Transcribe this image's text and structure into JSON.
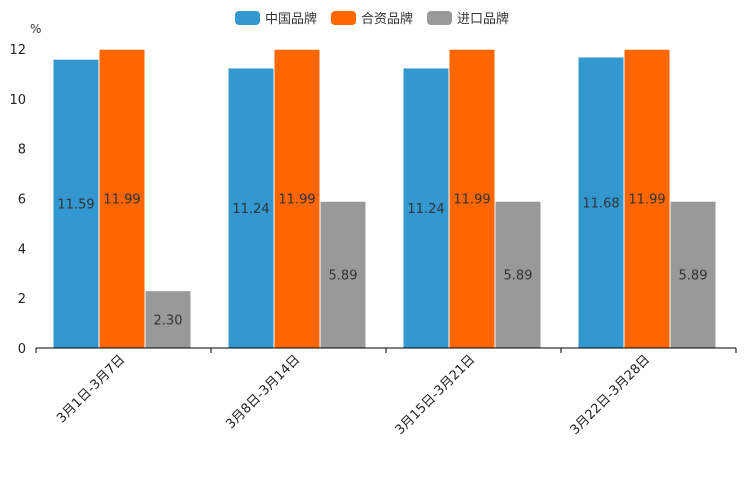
{
  "chart_data": {
    "type": "bar",
    "ylabel": "%",
    "ylim": [
      0,
      12
    ],
    "yticks": [
      "0",
      "2",
      "4",
      "6",
      "8",
      "10",
      "12"
    ],
    "categories": [
      "3月1日-3月7日",
      "3月8日-3月14日",
      "3月15日-3月21日",
      "3月22日-3月28日"
    ],
    "series": [
      {
        "name": "中国品牌",
        "color": "#3398d0",
        "values": [
          11.59,
          11.24,
          11.24,
          11.68
        ],
        "labels": [
          "11.59",
          "11.24",
          "11.24",
          "11.68"
        ]
      },
      {
        "name": "合资品牌",
        "color": "#ff6600",
        "values": [
          11.99,
          11.99,
          11.99,
          11.99
        ],
        "labels": [
          "11.99",
          "11.99",
          "11.99",
          "11.99"
        ]
      },
      {
        "name": "进口品牌",
        "color": "#999999",
        "values": [
          2.3,
          5.89,
          5.89,
          5.89
        ],
        "labels": [
          "2.30",
          "5.89",
          "5.89",
          "5.89"
        ]
      }
    ],
    "legend_position": "top-center"
  }
}
